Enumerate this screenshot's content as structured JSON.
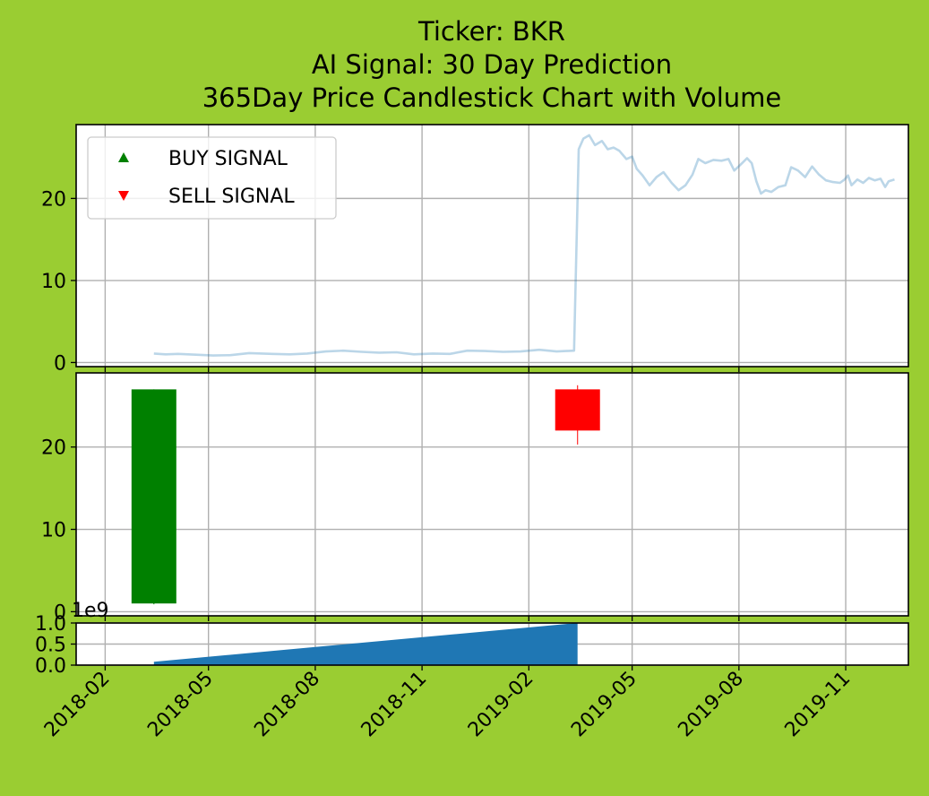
{
  "colors": {
    "figure_background": "#9acd32",
    "axes_background": "#ffffff",
    "grid": "#b0b0b0",
    "price_line": "#1f77b4",
    "up_candle": "#008000",
    "down_candle": "#ff0000",
    "volume_fill": "#1f77b4"
  },
  "chart_data": {
    "type": "line",
    "title_lines": [
      "Ticker: BKR",
      "AI Signal: 30 Day Prediction",
      "365Day Price Candlestick Chart with Volume"
    ],
    "x_ticks": [
      "2018-02",
      "2018-05",
      "2018-08",
      "2018-11",
      "2019-02",
      "2019-05",
      "2019-08",
      "2019-11"
    ],
    "x_tick_dates": [
      "2018-02-01",
      "2018-05-01",
      "2018-08-01",
      "2018-11-01",
      "2019-02-01",
      "2019-05-01",
      "2019-08-01",
      "2019-11-01"
    ],
    "x_range": [
      "2018-01-07",
      "2019-12-25"
    ],
    "shared_x_axis": true,
    "grid": true,
    "panels": [
      {
        "type": "line",
        "ylim": [
          -0.5,
          29
        ],
        "y_ticks": [
          0,
          10,
          20
        ],
        "legend": {
          "placement": "upper-left",
          "entries": [
            {
              "label": "BUY SIGNAL",
              "marker": "triangle-up",
              "color": "#008000"
            },
            {
              "label": "SELL SIGNAL",
              "marker": "triangle-down",
              "color": "#ff0000"
            }
          ]
        },
        "series": [
          {
            "values": [
              [
                "2018-03-15",
                1.1
              ],
              [
                "2018-03-25",
                1.0
              ],
              [
                "2018-04-05",
                1.05
              ],
              [
                "2018-04-20",
                0.95
              ],
              [
                "2018-05-05",
                0.85
              ],
              [
                "2018-05-20",
                0.9
              ],
              [
                "2018-06-05",
                1.15
              ],
              [
                "2018-06-25",
                1.05
              ],
              [
                "2018-07-10",
                1.0
              ],
              [
                "2018-07-25",
                1.1
              ],
              [
                "2018-08-10",
                1.35
              ],
              [
                "2018-08-25",
                1.45
              ],
              [
                "2018-09-10",
                1.3
              ],
              [
                "2018-09-25",
                1.2
              ],
              [
                "2018-10-10",
                1.25
              ],
              [
                "2018-10-25",
                1.0
              ],
              [
                "2018-11-10",
                1.1
              ],
              [
                "2018-11-25",
                1.05
              ],
              [
                "2018-12-10",
                1.45
              ],
              [
                "2018-12-25",
                1.4
              ],
              [
                "2019-01-10",
                1.3
              ],
              [
                "2019-01-25",
                1.35
              ],
              [
                "2019-02-10",
                1.55
              ],
              [
                "2019-02-25",
                1.35
              ],
              [
                "2019-03-05",
                1.4
              ],
              [
                "2019-03-12",
                1.45
              ],
              [
                "2019-03-16",
                26.0
              ],
              [
                "2019-03-20",
                27.3
              ],
              [
                "2019-03-25",
                27.7
              ],
              [
                "2019-03-30",
                26.5
              ],
              [
                "2019-04-05",
                27.0
              ],
              [
                "2019-04-10",
                26.0
              ],
              [
                "2019-04-15",
                26.2
              ],
              [
                "2019-04-20",
                25.8
              ],
              [
                "2019-04-26",
                24.8
              ],
              [
                "2019-05-01",
                25.1
              ],
              [
                "2019-05-05",
                23.6
              ],
              [
                "2019-05-10",
                22.8
              ],
              [
                "2019-05-16",
                21.6
              ],
              [
                "2019-05-22",
                22.6
              ],
              [
                "2019-05-28",
                23.2
              ],
              [
                "2019-06-04",
                21.9
              ],
              [
                "2019-06-10",
                21.0
              ],
              [
                "2019-06-16",
                21.6
              ],
              [
                "2019-06-22",
                22.9
              ],
              [
                "2019-06-27",
                24.8
              ],
              [
                "2019-07-03",
                24.3
              ],
              [
                "2019-07-10",
                24.7
              ],
              [
                "2019-07-17",
                24.6
              ],
              [
                "2019-07-23",
                24.8
              ],
              [
                "2019-07-28",
                23.4
              ],
              [
                "2019-08-03",
                24.2
              ],
              [
                "2019-08-08",
                24.9
              ],
              [
                "2019-08-12",
                24.3
              ],
              [
                "2019-08-16",
                22.1
              ],
              [
                "2019-08-20",
                20.6
              ],
              [
                "2019-08-24",
                21.0
              ],
              [
                "2019-08-29",
                20.8
              ],
              [
                "2019-09-04",
                21.4
              ],
              [
                "2019-09-10",
                21.6
              ],
              [
                "2019-09-15",
                23.8
              ],
              [
                "2019-09-21",
                23.4
              ],
              [
                "2019-09-27",
                22.6
              ],
              [
                "2019-10-03",
                23.9
              ],
              [
                "2019-10-09",
                22.9
              ],
              [
                "2019-10-15",
                22.2
              ],
              [
                "2019-10-21",
                22.0
              ],
              [
                "2019-10-27",
                21.9
              ],
              [
                "2019-10-31",
                22.3
              ],
              [
                "2019-11-03",
                22.8
              ],
              [
                "2019-11-06",
                21.6
              ],
              [
                "2019-11-11",
                22.3
              ],
              [
                "2019-11-16",
                21.9
              ],
              [
                "2019-11-21",
                22.5
              ],
              [
                "2019-11-26",
                22.2
              ],
              [
                "2019-12-01",
                22.4
              ],
              [
                "2019-12-05",
                21.4
              ],
              [
                "2019-12-08",
                22.1
              ],
              [
                "2019-12-13",
                22.3
              ]
            ]
          }
        ]
      },
      {
        "type": "candlestick",
        "ylim": [
          -0.5,
          29
        ],
        "y_ticks": [
          0,
          10,
          20
        ],
        "candles": [
          {
            "date": "2018-03-15",
            "open": 1.0,
            "close": 27.0,
            "high": 27.0,
            "low": 0.9,
            "direction": "up"
          },
          {
            "date": "2019-03-15",
            "open": 27.0,
            "close": 22.0,
            "high": 27.5,
            "low": 20.3,
            "direction": "down"
          }
        ]
      },
      {
        "type": "area",
        "ylim": [
          0,
          1.0
        ],
        "y_ticks": [
          "0.0",
          "0.5",
          "1.0"
        ],
        "offset_label": "1e9",
        "series": [
          {
            "values": [
              [
                "2018-03-15",
                0.0
              ],
              [
                "2018-03-15",
                0.08
              ],
              [
                "2019-03-15",
                1.0
              ],
              [
                "2019-03-15",
                0.0
              ]
            ]
          }
        ]
      }
    ]
  }
}
